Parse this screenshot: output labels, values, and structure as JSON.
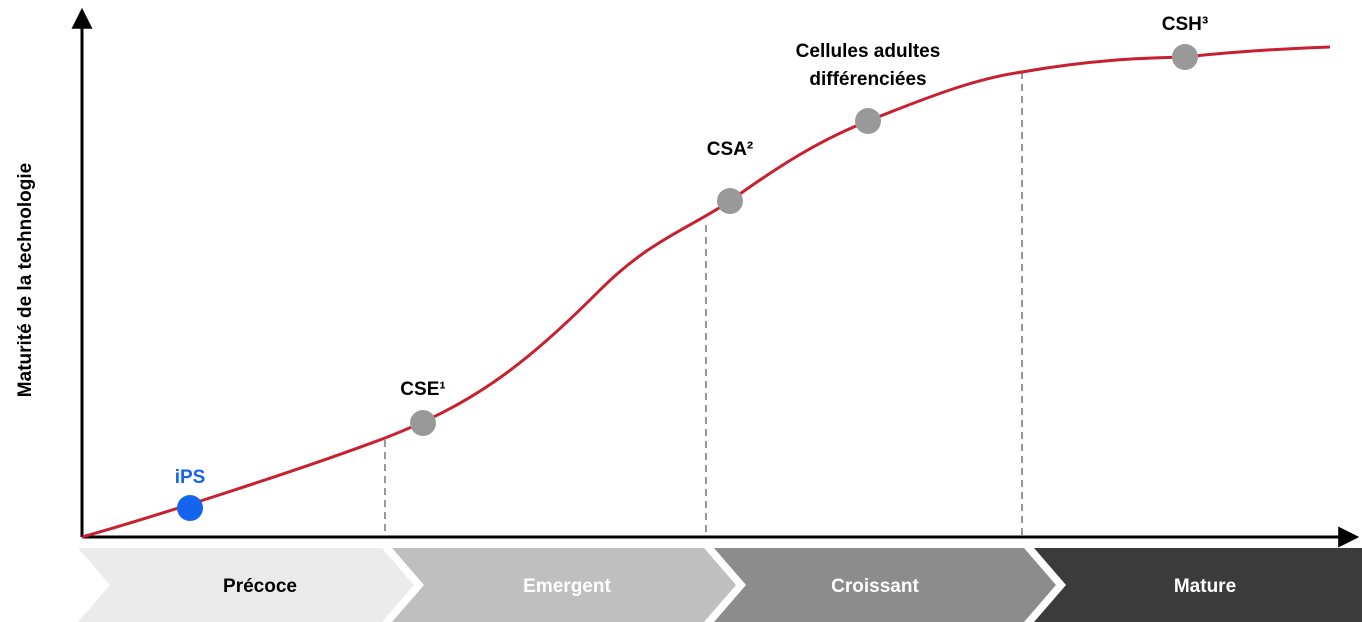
{
  "y_axis_label": "Maturité de la technologie",
  "points": [
    {
      "label": [
        "iPS"
      ]
    },
    {
      "label": [
        "CSE¹"
      ]
    },
    {
      "label": [
        "CSA²"
      ]
    },
    {
      "label": [
        "Cellules adultes",
        "différenciées"
      ]
    },
    {
      "label": [
        "CSH³"
      ]
    }
  ],
  "phases": [
    "Précoce",
    "Emergent",
    "Croissant",
    "Mature"
  ]
}
